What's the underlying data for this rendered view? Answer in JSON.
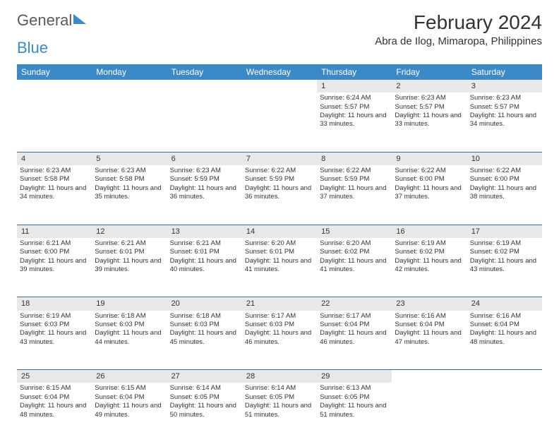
{
  "logo": {
    "text_general": "General",
    "text_blue": "Blue"
  },
  "title": "February 2024",
  "location": "Abra de Ilog, Mimaropa, Philippines",
  "colors": {
    "header_bg": "#3c89c7",
    "header_text": "#ffffff",
    "daynum_bg": "#e8e8e8",
    "border": "#3c6a9a",
    "text": "#333333",
    "logo_gray": "#5a5a5a",
    "logo_blue": "#3c89c7",
    "background": "#ffffff"
  },
  "typography": {
    "title_fontsize": 28,
    "location_fontsize": 15,
    "weekday_fontsize": 12,
    "daynum_fontsize": 11,
    "cell_fontsize": 9.5
  },
  "weekdays": [
    "Sunday",
    "Monday",
    "Tuesday",
    "Wednesday",
    "Thursday",
    "Friday",
    "Saturday"
  ],
  "weeks": [
    [
      null,
      null,
      null,
      null,
      {
        "n": "1",
        "sr": "Sunrise: 6:24 AM",
        "ss": "Sunset: 5:57 PM",
        "dl": "Daylight: 11 hours and 33 minutes."
      },
      {
        "n": "2",
        "sr": "Sunrise: 6:23 AM",
        "ss": "Sunset: 5:57 PM",
        "dl": "Daylight: 11 hours and 33 minutes."
      },
      {
        "n": "3",
        "sr": "Sunrise: 6:23 AM",
        "ss": "Sunset: 5:57 PM",
        "dl": "Daylight: 11 hours and 34 minutes."
      }
    ],
    [
      {
        "n": "4",
        "sr": "Sunrise: 6:23 AM",
        "ss": "Sunset: 5:58 PM",
        "dl": "Daylight: 11 hours and 34 minutes."
      },
      {
        "n": "5",
        "sr": "Sunrise: 6:23 AM",
        "ss": "Sunset: 5:58 PM",
        "dl": "Daylight: 11 hours and 35 minutes."
      },
      {
        "n": "6",
        "sr": "Sunrise: 6:23 AM",
        "ss": "Sunset: 5:59 PM",
        "dl": "Daylight: 11 hours and 36 minutes."
      },
      {
        "n": "7",
        "sr": "Sunrise: 6:22 AM",
        "ss": "Sunset: 5:59 PM",
        "dl": "Daylight: 11 hours and 36 minutes."
      },
      {
        "n": "8",
        "sr": "Sunrise: 6:22 AM",
        "ss": "Sunset: 5:59 PM",
        "dl": "Daylight: 11 hours and 37 minutes."
      },
      {
        "n": "9",
        "sr": "Sunrise: 6:22 AM",
        "ss": "Sunset: 6:00 PM",
        "dl": "Daylight: 11 hours and 37 minutes."
      },
      {
        "n": "10",
        "sr": "Sunrise: 6:22 AM",
        "ss": "Sunset: 6:00 PM",
        "dl": "Daylight: 11 hours and 38 minutes."
      }
    ],
    [
      {
        "n": "11",
        "sr": "Sunrise: 6:21 AM",
        "ss": "Sunset: 6:00 PM",
        "dl": "Daylight: 11 hours and 39 minutes."
      },
      {
        "n": "12",
        "sr": "Sunrise: 6:21 AM",
        "ss": "Sunset: 6:01 PM",
        "dl": "Daylight: 11 hours and 39 minutes."
      },
      {
        "n": "13",
        "sr": "Sunrise: 6:21 AM",
        "ss": "Sunset: 6:01 PM",
        "dl": "Daylight: 11 hours and 40 minutes."
      },
      {
        "n": "14",
        "sr": "Sunrise: 6:20 AM",
        "ss": "Sunset: 6:01 PM",
        "dl": "Daylight: 11 hours and 41 minutes."
      },
      {
        "n": "15",
        "sr": "Sunrise: 6:20 AM",
        "ss": "Sunset: 6:02 PM",
        "dl": "Daylight: 11 hours and 41 minutes."
      },
      {
        "n": "16",
        "sr": "Sunrise: 6:19 AM",
        "ss": "Sunset: 6:02 PM",
        "dl": "Daylight: 11 hours and 42 minutes."
      },
      {
        "n": "17",
        "sr": "Sunrise: 6:19 AM",
        "ss": "Sunset: 6:02 PM",
        "dl": "Daylight: 11 hours and 43 minutes."
      }
    ],
    [
      {
        "n": "18",
        "sr": "Sunrise: 6:19 AM",
        "ss": "Sunset: 6:03 PM",
        "dl": "Daylight: 11 hours and 43 minutes."
      },
      {
        "n": "19",
        "sr": "Sunrise: 6:18 AM",
        "ss": "Sunset: 6:03 PM",
        "dl": "Daylight: 11 hours and 44 minutes."
      },
      {
        "n": "20",
        "sr": "Sunrise: 6:18 AM",
        "ss": "Sunset: 6:03 PM",
        "dl": "Daylight: 11 hours and 45 minutes."
      },
      {
        "n": "21",
        "sr": "Sunrise: 6:17 AM",
        "ss": "Sunset: 6:03 PM",
        "dl": "Daylight: 11 hours and 46 minutes."
      },
      {
        "n": "22",
        "sr": "Sunrise: 6:17 AM",
        "ss": "Sunset: 6:04 PM",
        "dl": "Daylight: 11 hours and 46 minutes."
      },
      {
        "n": "23",
        "sr": "Sunrise: 6:16 AM",
        "ss": "Sunset: 6:04 PM",
        "dl": "Daylight: 11 hours and 47 minutes."
      },
      {
        "n": "24",
        "sr": "Sunrise: 6:16 AM",
        "ss": "Sunset: 6:04 PM",
        "dl": "Daylight: 11 hours and 48 minutes."
      }
    ],
    [
      {
        "n": "25",
        "sr": "Sunrise: 6:15 AM",
        "ss": "Sunset: 6:04 PM",
        "dl": "Daylight: 11 hours and 48 minutes."
      },
      {
        "n": "26",
        "sr": "Sunrise: 6:15 AM",
        "ss": "Sunset: 6:04 PM",
        "dl": "Daylight: 11 hours and 49 minutes."
      },
      {
        "n": "27",
        "sr": "Sunrise: 6:14 AM",
        "ss": "Sunset: 6:05 PM",
        "dl": "Daylight: 11 hours and 50 minutes."
      },
      {
        "n": "28",
        "sr": "Sunrise: 6:14 AM",
        "ss": "Sunset: 6:05 PM",
        "dl": "Daylight: 11 hours and 51 minutes."
      },
      {
        "n": "29",
        "sr": "Sunrise: 6:13 AM",
        "ss": "Sunset: 6:05 PM",
        "dl": "Daylight: 11 hours and 51 minutes."
      },
      null,
      null
    ]
  ]
}
